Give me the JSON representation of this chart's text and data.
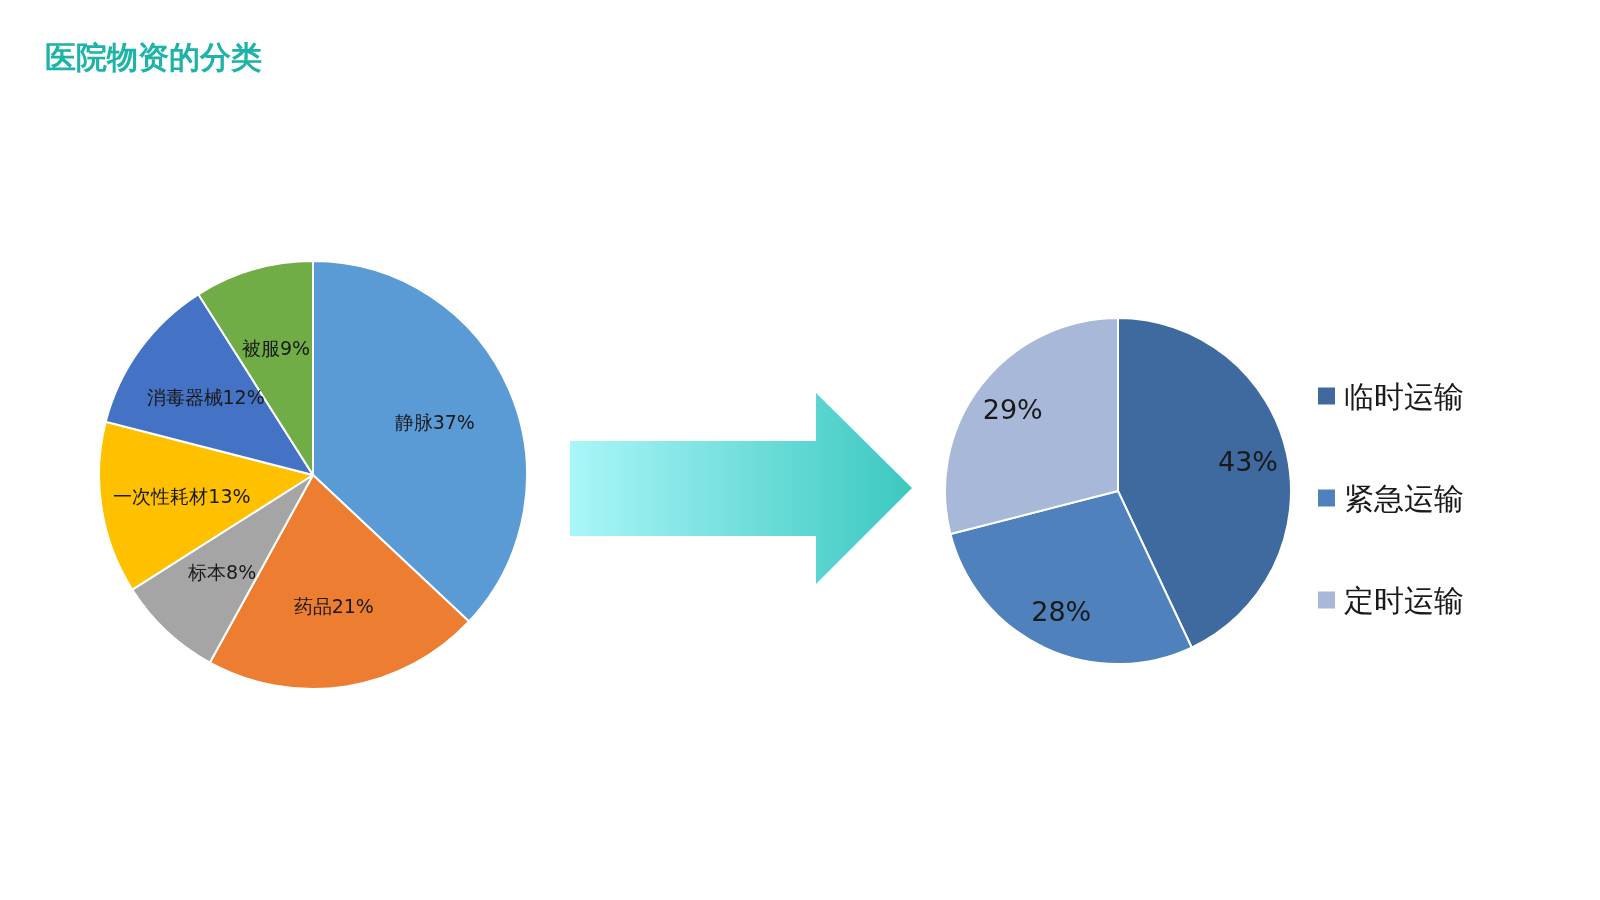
{
  "chart_data": [
    {
      "type": "pie",
      "title": "医院物资的分类",
      "categories": [
        "静脉",
        "药品",
        "标本",
        "一次性耗材",
        "消毒器械",
        "被服"
      ],
      "values": [
        37,
        21,
        8,
        13,
        12,
        9
      ],
      "colors": [
        "#5b9bd5",
        "#ed7d31",
        "#a5a5a5",
        "#ffc000",
        "#4472c4",
        "#70ad47"
      ],
      "value_labels": [
        "37%",
        "21%",
        "8%",
        "13%",
        "12%",
        "9%"
      ]
    },
    {
      "type": "pie",
      "categories": [
        "临时运输",
        "紧急运输",
        "定时运输"
      ],
      "values": [
        43,
        28,
        29
      ],
      "colors": [
        "#3e6aa0",
        "#4f81bd",
        "#a8b8d8"
      ],
      "value_labels": [
        "43%",
        "28%",
        "29%"
      ],
      "legend": "right"
    }
  ]
}
